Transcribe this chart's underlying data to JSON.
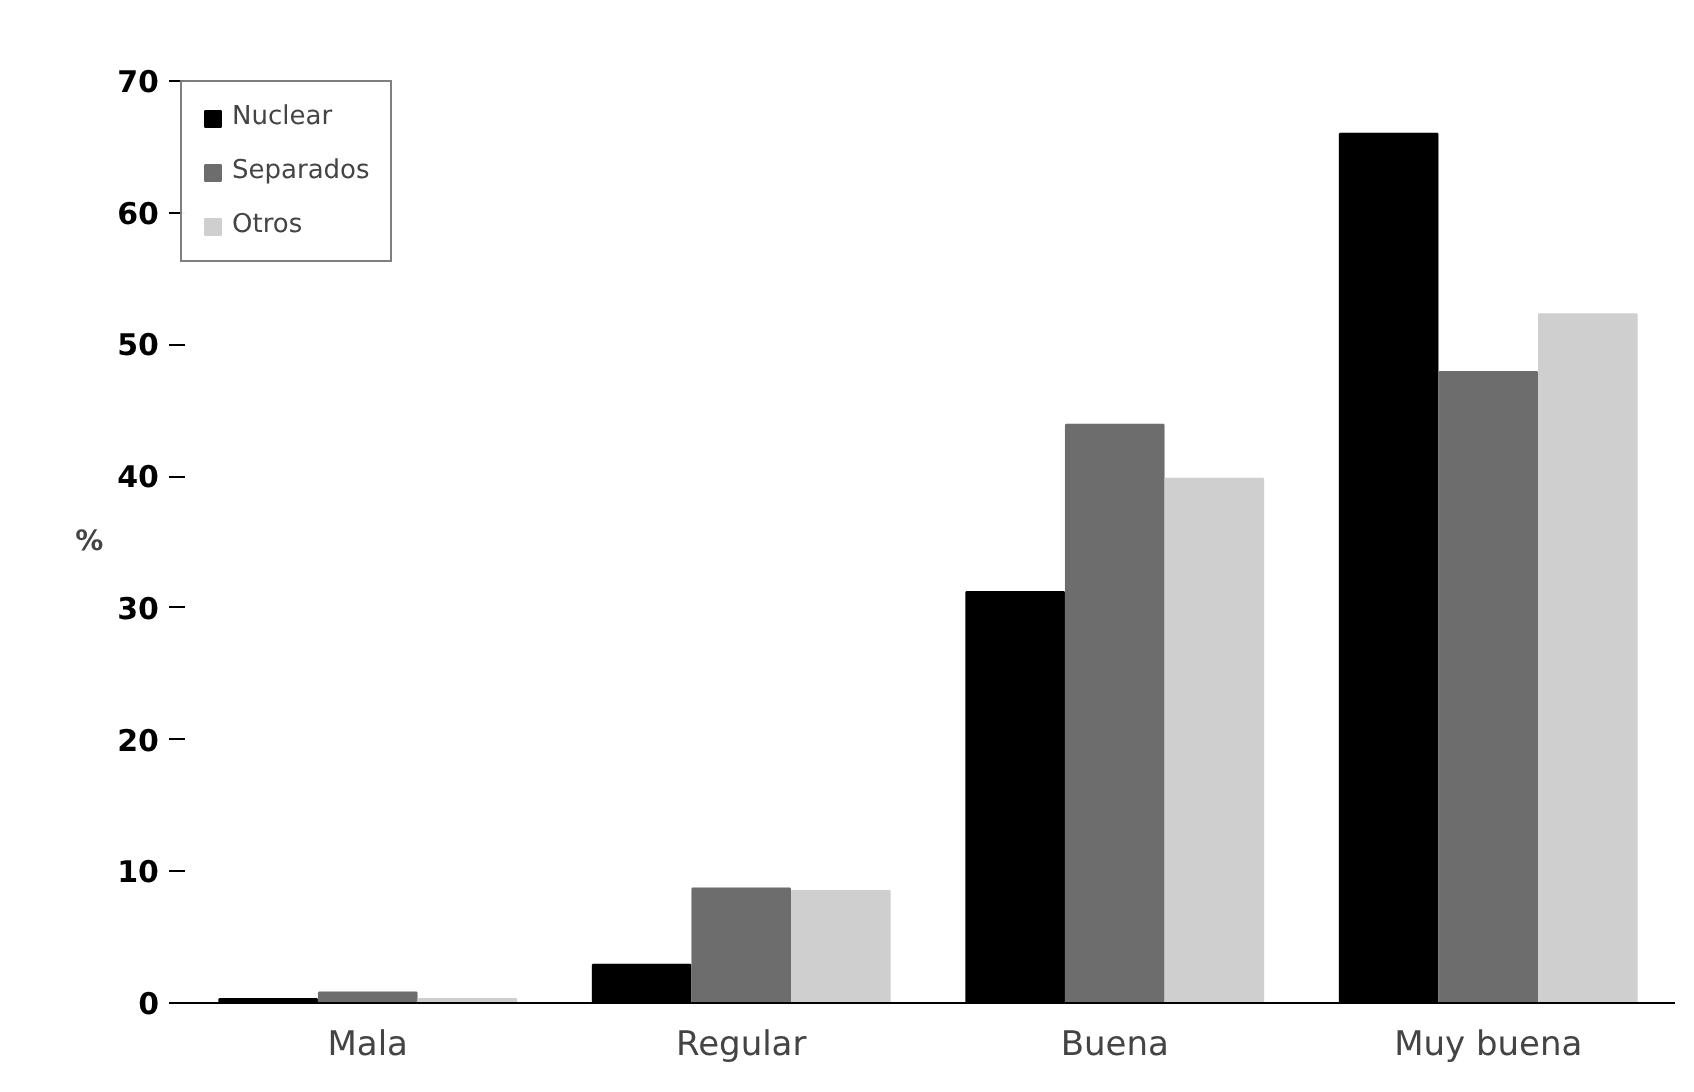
{
  "chart_data": {
    "type": "bar",
    "ylabel": "%",
    "categories": [
      "Mala",
      "Regular",
      "Buena",
      "Muy buena"
    ],
    "series": [
      {
        "name": "Nuclear",
        "color": "#000000",
        "values": [
          0.3,
          2.9,
          31.2,
          66.0
        ]
      },
      {
        "name": "Separados",
        "color": "#6d6d6d",
        "values": [
          0.8,
          8.7,
          43.9,
          47.9
        ]
      },
      {
        "name": "Otros",
        "color": "#cfcfcf",
        "values": [
          0.3,
          8.5,
          39.8,
          52.3
        ]
      }
    ],
    "ylim": [
      0,
      70
    ],
    "yticks": [
      0,
      10,
      20,
      30,
      40,
      50,
      60,
      70
    ],
    "grid": false,
    "legend": "top left"
  }
}
